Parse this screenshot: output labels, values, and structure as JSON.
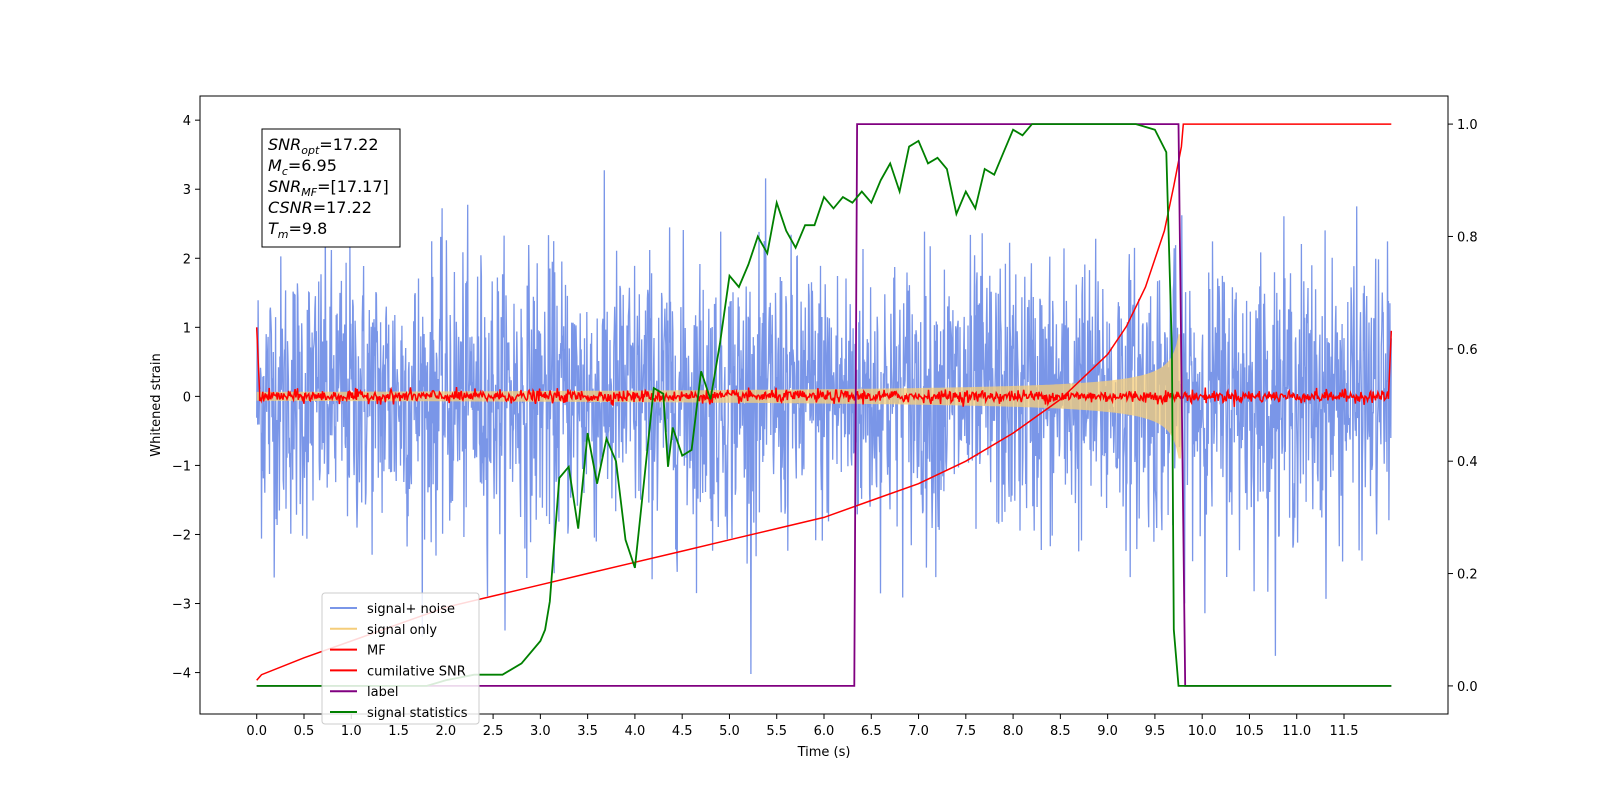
{
  "chart_data": {
    "type": "line",
    "xlabel": "Time (s)",
    "ylabel": "Whitened strain",
    "xlim": [
      -0.6,
      12.6
    ],
    "ylim": [
      -4.6,
      4.35
    ],
    "y2lim": [
      -0.05,
      1.05
    ],
    "x_ticks": [
      "0.0",
      "0.5",
      "1.0",
      "1.5",
      "2.0",
      "2.5",
      "3.0",
      "3.5",
      "4.0",
      "4.5",
      "5.0",
      "5.5",
      "6.0",
      "6.5",
      "7.0",
      "7.5",
      "8.0",
      "8.5",
      "9.0",
      "9.5",
      "10.0",
      "10.5",
      "11.0",
      "11.5"
    ],
    "y_ticks": [
      "4",
      "3",
      "2",
      "1",
      "0",
      "−1",
      "−2",
      "−3",
      "−4"
    ],
    "y2_ticks": [
      "1.0",
      "0.8",
      "0.6",
      "0.4",
      "0.2",
      "0.0"
    ],
    "annotation": [
      {
        "name": "SNR",
        "sub": "opt",
        "text": "=17.22"
      },
      {
        "name": "M",
        "sub": "c",
        "text": "=6.95"
      },
      {
        "name": "SNR",
        "sub": "MF",
        "text": "=[17.17]"
      },
      {
        "name": "CSNR",
        "sub": "",
        "text": "=17.22"
      },
      {
        "name": "T",
        "sub": "m",
        "text": "=9.8"
      }
    ],
    "legend_position": "lower-left",
    "series": [
      {
        "name": "signal+ noise",
        "color": "#7a96e8",
        "axis": "left",
        "noise_std": 1.0,
        "x_range": [
          0.0,
          12.0
        ]
      },
      {
        "name": "signal only",
        "color": "#f5cd7a",
        "axis": "left",
        "merger_time": 9.8,
        "envelope_at_merger": 0.9
      },
      {
        "name": "MF",
        "color": "#ff0000",
        "axis": "left",
        "level": 0.0,
        "start_value": 1.0,
        "end_value": 0.95
      },
      {
        "name": "cumilative SNR",
        "color": "#ff0000",
        "axis": "right",
        "x": [
          0.0,
          0.05,
          0.5,
          1.0,
          1.5,
          2.0,
          2.5,
          3.0,
          3.5,
          4.0,
          4.5,
          5.0,
          5.5,
          6.0,
          6.5,
          7.0,
          7.5,
          8.0,
          8.5,
          9.0,
          9.2,
          9.4,
          9.6,
          9.7,
          9.78,
          9.8,
          12.0
        ],
        "y": [
          0.01,
          0.02,
          0.05,
          0.08,
          0.11,
          0.14,
          0.16,
          0.18,
          0.2,
          0.22,
          0.24,
          0.26,
          0.28,
          0.3,
          0.33,
          0.36,
          0.4,
          0.45,
          0.51,
          0.59,
          0.64,
          0.71,
          0.81,
          0.89,
          0.96,
          1.0,
          1.0
        ]
      },
      {
        "name": "label",
        "color": "#800080",
        "axis": "right",
        "x": [
          0.0,
          6.32,
          6.35,
          9.75,
          9.82,
          12.0
        ],
        "y": [
          0.0,
          0.0,
          1.0,
          1.0,
          0.0,
          0.0
        ]
      },
      {
        "name": "signal statistics",
        "color": "#008000",
        "axis": "right",
        "x": [
          0.0,
          0.5,
          1.0,
          1.5,
          1.8,
          2.0,
          2.3,
          2.6,
          2.8,
          3.0,
          3.05,
          3.1,
          3.2,
          3.3,
          3.4,
          3.5,
          3.6,
          3.7,
          3.8,
          3.9,
          4.0,
          4.1,
          4.2,
          4.3,
          4.35,
          4.4,
          4.5,
          4.6,
          4.7,
          4.8,
          4.9,
          5.0,
          5.1,
          5.2,
          5.3,
          5.4,
          5.5,
          5.6,
          5.7,
          5.8,
          5.9,
          6.0,
          6.1,
          6.2,
          6.3,
          6.4,
          6.5,
          6.6,
          6.7,
          6.8,
          6.9,
          7.0,
          7.05,
          7.1,
          7.2,
          7.3,
          7.4,
          7.5,
          7.6,
          7.7,
          7.8,
          7.9,
          8.0,
          8.1,
          8.2,
          8.3,
          8.5,
          8.7,
          9.0,
          9.3,
          9.5,
          9.62,
          9.68,
          9.7,
          9.75,
          9.8,
          11.0,
          12.0
        ],
        "y": [
          0.0,
          0.0,
          0.0,
          0.0,
          0.0,
          0.01,
          0.02,
          0.02,
          0.04,
          0.08,
          0.1,
          0.15,
          0.37,
          0.39,
          0.28,
          0.45,
          0.36,
          0.44,
          0.4,
          0.26,
          0.21,
          0.37,
          0.53,
          0.52,
          0.39,
          0.46,
          0.41,
          0.42,
          0.56,
          0.51,
          0.61,
          0.73,
          0.71,
          0.75,
          0.8,
          0.77,
          0.86,
          0.81,
          0.78,
          0.82,
          0.82,
          0.87,
          0.85,
          0.87,
          0.86,
          0.88,
          0.86,
          0.9,
          0.93,
          0.88,
          0.96,
          0.97,
          0.95,
          0.93,
          0.94,
          0.92,
          0.84,
          0.88,
          0.85,
          0.92,
          0.91,
          0.95,
          0.99,
          0.98,
          1.0,
          1.0,
          1.0,
          1.0,
          1.0,
          1.0,
          0.99,
          0.95,
          0.6,
          0.1,
          0.0,
          0.0,
          0.0,
          0.0
        ]
      }
    ]
  }
}
